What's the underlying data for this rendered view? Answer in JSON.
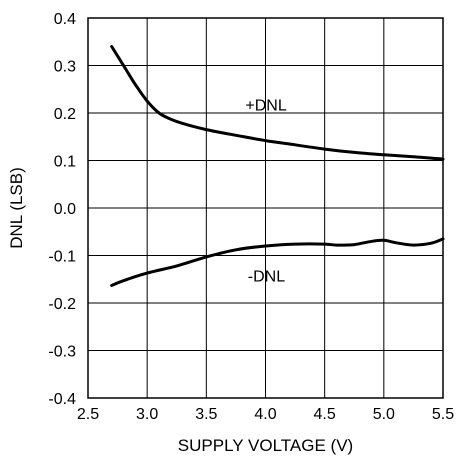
{
  "chart_data": {
    "type": "line",
    "xlabel": "SUPPLY VOLTAGE (V)",
    "ylabel": "DNL (LSB)",
    "xlim": [
      2.5,
      5.5
    ],
    "ylim": [
      -0.4,
      0.4
    ],
    "x_ticks": [
      "2.5",
      "3.0",
      "3.5",
      "4.0",
      "4.5",
      "5.0",
      "5.5"
    ],
    "y_ticks": [
      "0.4",
      "0.3",
      "0.2",
      "0.1",
      "0.0",
      "-0.1",
      "-0.2",
      "-0.3",
      "-0.4"
    ],
    "grid": true,
    "series": [
      {
        "name": "+DNL",
        "x": [
          2.7,
          2.8,
          2.9,
          3.0,
          3.1,
          3.2,
          3.3,
          3.5,
          3.75,
          4.0,
          4.25,
          4.5,
          4.75,
          5.0,
          5.25,
          5.5
        ],
        "y": [
          0.34,
          0.3,
          0.26,
          0.225,
          0.2,
          0.187,
          0.178,
          0.165,
          0.153,
          0.142,
          0.133,
          0.124,
          0.117,
          0.112,
          0.108,
          0.103
        ]
      },
      {
        "name": "-DNL",
        "x": [
          2.7,
          2.8,
          3.0,
          3.25,
          3.5,
          3.75,
          4.0,
          4.25,
          4.5,
          4.6,
          4.75,
          4.9,
          5.0,
          5.1,
          5.25,
          5.4,
          5.5
        ],
        "y": [
          -0.163,
          -0.153,
          -0.137,
          -0.122,
          -0.103,
          -0.088,
          -0.08,
          -0.076,
          -0.076,
          -0.078,
          -0.077,
          -0.07,
          -0.068,
          -0.073,
          -0.078,
          -0.074,
          -0.065
        ]
      }
    ],
    "line_color": "#000000",
    "grid_color": "#000000"
  }
}
